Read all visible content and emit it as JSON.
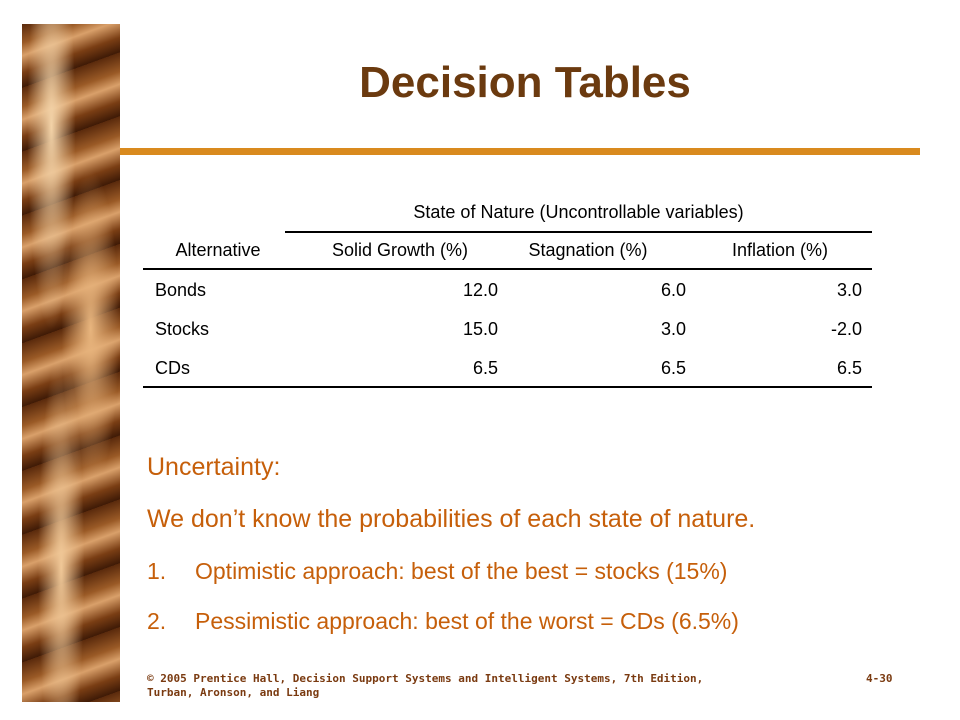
{
  "title": "Decision Tables",
  "table": {
    "group_header": "State of Nature (Uncontrollable variables)",
    "columns": [
      "Alternative",
      "Solid Growth (%)",
      "Stagnation (%)",
      "Inflation (%)"
    ],
    "rows": [
      [
        "Bonds",
        "12.0",
        "6.0",
        "3.0"
      ],
      [
        "Stocks",
        "15.0",
        "3.0",
        "-2.0"
      ],
      [
        "CDs",
        "6.5",
        "6.5",
        "6.5"
      ]
    ]
  },
  "body": {
    "heading": "Uncertainty:",
    "statement": "We don’t know the probabilities of each state of nature.",
    "items": [
      {
        "number": "1.",
        "text": "Optimistic approach: best of the best = stocks (15%)"
      },
      {
        "number": "2.",
        "text": "Pessimistic approach: best of the worst = CDs (6.5%)"
      }
    ]
  },
  "footer": {
    "line1": "© 2005  Prentice Hall, Decision Support Systems and Intelligent Systems, 7th Edition,",
    "line2": "Turban, Aronson, and Liang",
    "page": "4-30"
  }
}
